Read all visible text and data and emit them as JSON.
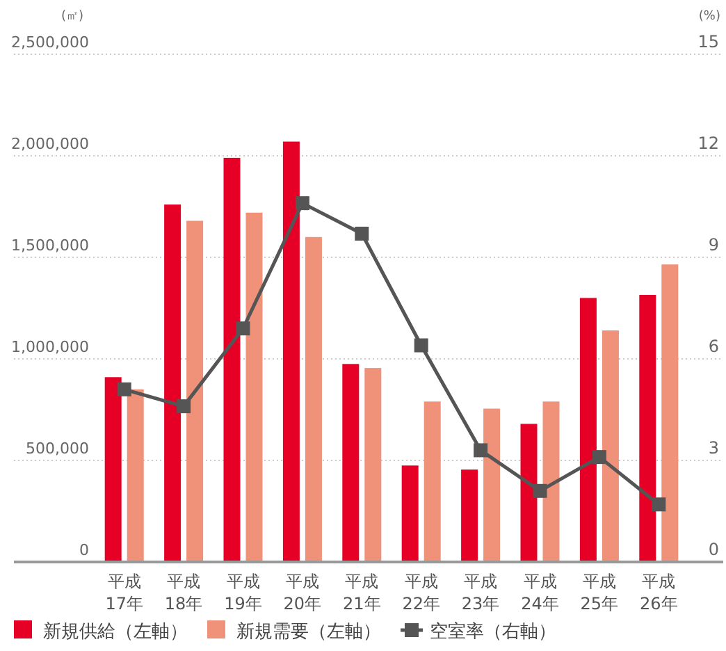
{
  "chart_data": {
    "type": "bar",
    "ylabel": "(㎡)",
    "y2label": "(%)",
    "categories": [
      "平成\n17年",
      "平成\n18年",
      "平成\n19年",
      "平成\n20年",
      "平成\n21年",
      "平成\n22年",
      "平成\n23年",
      "平成\n24年",
      "平成\n25年",
      "平成\n26年"
    ],
    "series": [
      {
        "name": "新規供給（左軸）",
        "color": "#e60026",
        "values": [
          910000,
          1760000,
          1990000,
          2070000,
          975000,
          475000,
          455000,
          680000,
          1300000,
          1315000
        ]
      },
      {
        "name": "新規需要（左軸）",
        "color": "#f0917a",
        "values": [
          850000,
          1680000,
          1720000,
          1600000,
          955000,
          790000,
          755000,
          790000,
          1140000,
          1465000
        ]
      },
      {
        "name": "空室率（右軸）",
        "type": "line",
        "axis": "y2",
        "color": "#555555",
        "values": [
          5.1,
          4.6,
          6.9,
          10.6,
          9.7,
          6.4,
          3.3,
          2.1,
          3.1,
          1.7
        ]
      }
    ],
    "ylim": [
      0,
      2500000
    ],
    "yticks": [
      {
        "value": 0,
        "label": "0"
      },
      {
        "value": 500000,
        "label": "500,000"
      },
      {
        "value": 1000000,
        "label": "1,000,000"
      },
      {
        "value": 1500000,
        "label": "1,500,000"
      },
      {
        "value": 2000000,
        "label": "2,000,000"
      },
      {
        "value": 2500000,
        "label": "2,500,000"
      }
    ],
    "y2lim": [
      0,
      15
    ],
    "y2ticks": [
      0,
      3,
      6,
      9,
      12,
      15
    ],
    "grid": "y",
    "legend": "bottom",
    "marker": "square",
    "line_style": "solid"
  }
}
